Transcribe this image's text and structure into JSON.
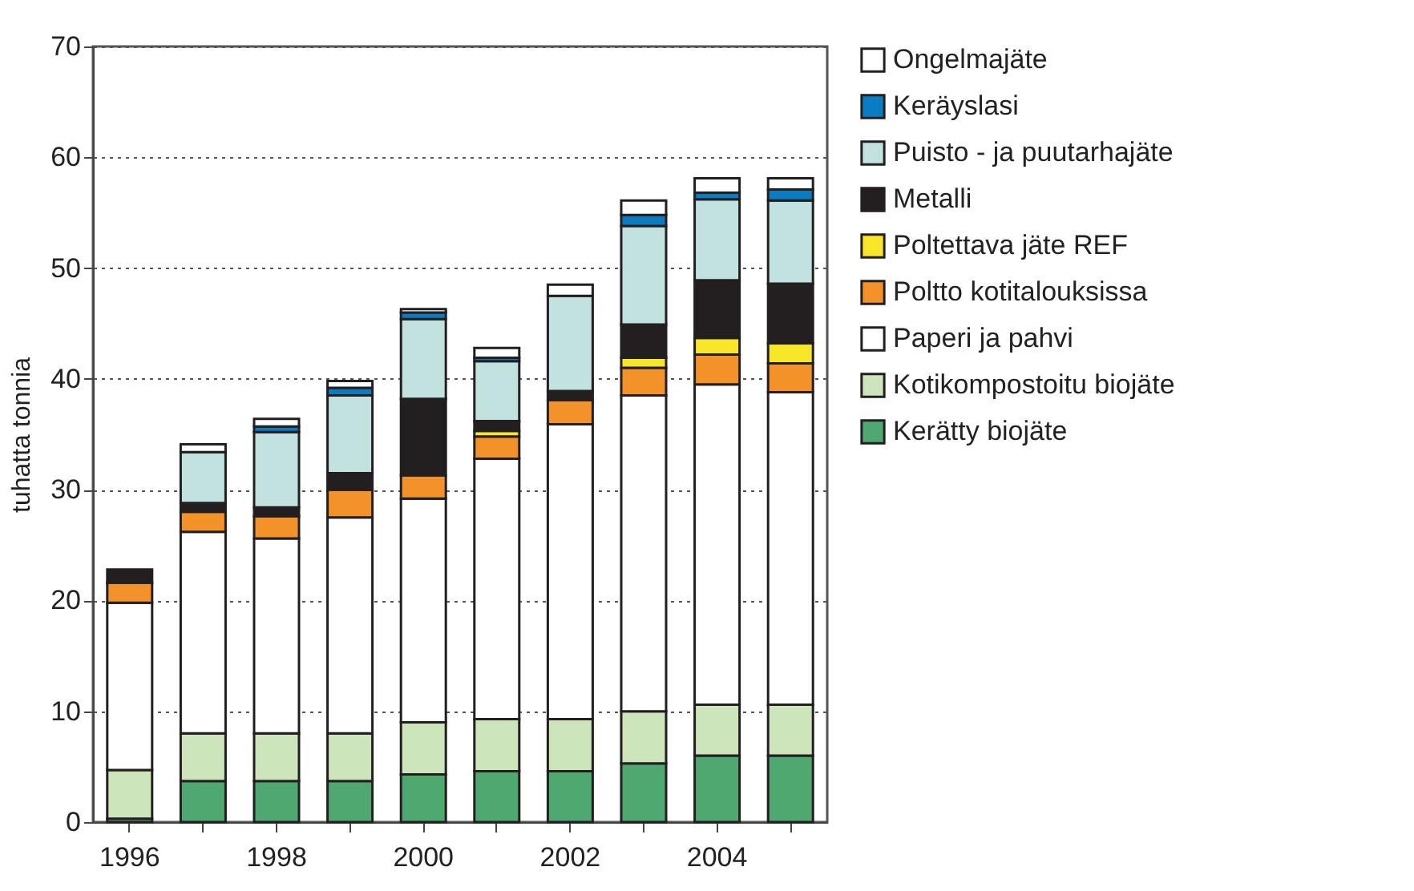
{
  "chart_data": {
    "type": "bar",
    "stacked": true,
    "ylabel": "tuhatta tonnia",
    "categories": [
      "1996",
      null,
      "1998",
      null,
      "2000",
      null,
      "2002",
      null,
      "2004",
      null
    ],
    "series": [
      {
        "name": "Kerätty biojäte",
        "color": "#4ea86f",
        "values": [
          0.3,
          3.7,
          3.7,
          3.7,
          4.3,
          4.6,
          4.6,
          5.3,
          6.0,
          6.0
        ]
      },
      {
        "name": "Kotikompostoitu  biojäte",
        "color": "#cce5bb",
        "values": [
          4.4,
          4.3,
          4.3,
          4.3,
          4.7,
          4.7,
          4.7,
          4.7,
          4.6,
          4.6
        ]
      },
      {
        "name": "Paperi ja pahvi",
        "color": "#ffffff",
        "values": [
          15.1,
          18.2,
          17.6,
          19.5,
          20.2,
          23.5,
          26.6,
          28.5,
          28.9,
          28.2
        ]
      },
      {
        "name": "Poltto kotitalouksissa",
        "color": "#f39229",
        "values": [
          1.8,
          1.8,
          2.0,
          2.5,
          2.1,
          2.0,
          2.2,
          2.5,
          2.7,
          2.6
        ]
      },
      {
        "name": "Poltettava jäte REF",
        "color": "#f7e628",
        "values": [
          null,
          null,
          null,
          null,
          null,
          0.5,
          null,
          0.9,
          1.5,
          1.8
        ]
      },
      {
        "name": "Metalli",
        "color": "#231f20",
        "values": [
          1.2,
          0.8,
          0.8,
          1.5,
          6.9,
          0.9,
          0.8,
          3.0,
          5.2,
          5.4
        ]
      },
      {
        "name": "Puisto - ja puutarhajäte",
        "color": "#c2e2e0",
        "values": [
          null,
          4.6,
          6.8,
          7.0,
          7.2,
          5.4,
          8.6,
          8.9,
          7.3,
          7.5
        ]
      },
      {
        "name": "Keräyslasi",
        "color": "#0a7cc1",
        "values": [
          null,
          null,
          0.5,
          0.7,
          0.6,
          0.3,
          null,
          1.0,
          0.6,
          1.0
        ]
      },
      {
        "name": "Ongelmajäte",
        "color": "#ffffff",
        "values": [
          null,
          0.7,
          0.7,
          0.6,
          0.3,
          0.9,
          1.0,
          1.3,
          1.3,
          1.0
        ]
      }
    ],
    "ylim": [
      0,
      70
    ],
    "yticks": [
      0,
      10,
      20,
      30,
      40,
      50,
      60,
      70
    ],
    "grid": "y",
    "legend": "right"
  }
}
